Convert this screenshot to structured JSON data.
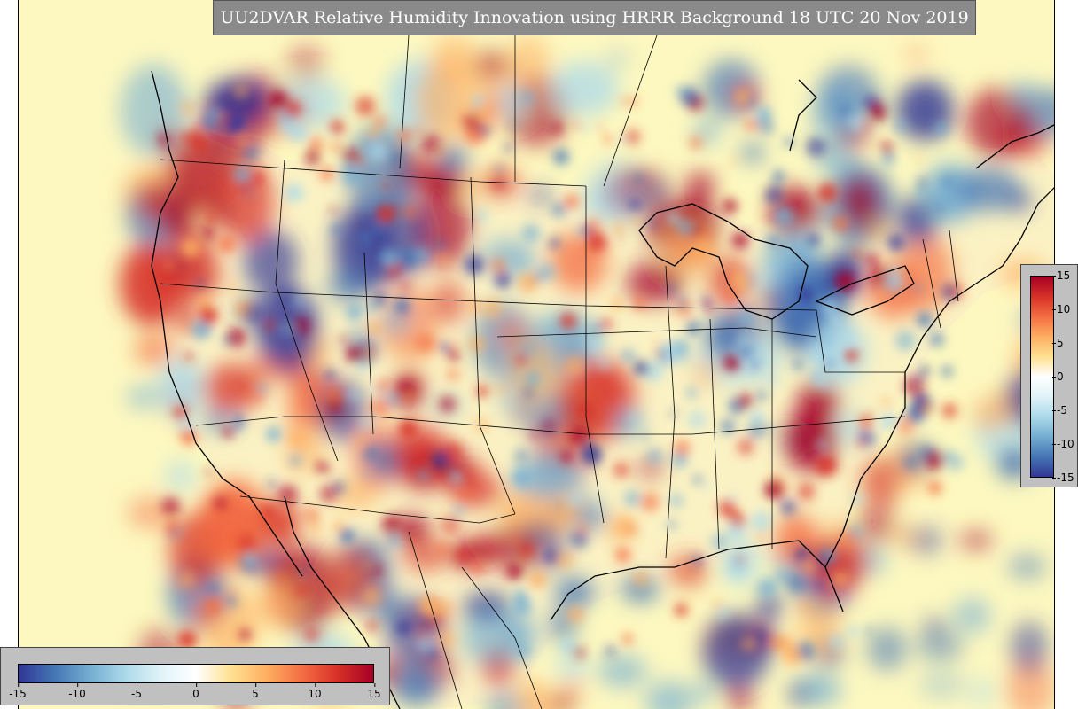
{
  "title": "UU2DVAR Relative Humidity Innovation using HRRR Background 18 UTC 20 Nov 2019",
  "colorbar": {
    "min": -15,
    "max": 15,
    "vertical_ticks": [
      "15",
      "10",
      "5",
      "0",
      "-5",
      "-10",
      "-15"
    ],
    "horizontal_ticks": [
      "-15",
      "-10",
      "-5",
      "0",
      "5",
      "10",
      "15"
    ],
    "colors": [
      "#313695",
      "#4575b4",
      "#74add1",
      "#abd9e9",
      "#e0f3f8",
      "#ffffff",
      "#fee090",
      "#fdae61",
      "#f46d43",
      "#d73027",
      "#a50026"
    ]
  },
  "map": {
    "background_color": "#fdf8c0",
    "border_color": "#000000",
    "region": "Continental United States"
  }
}
